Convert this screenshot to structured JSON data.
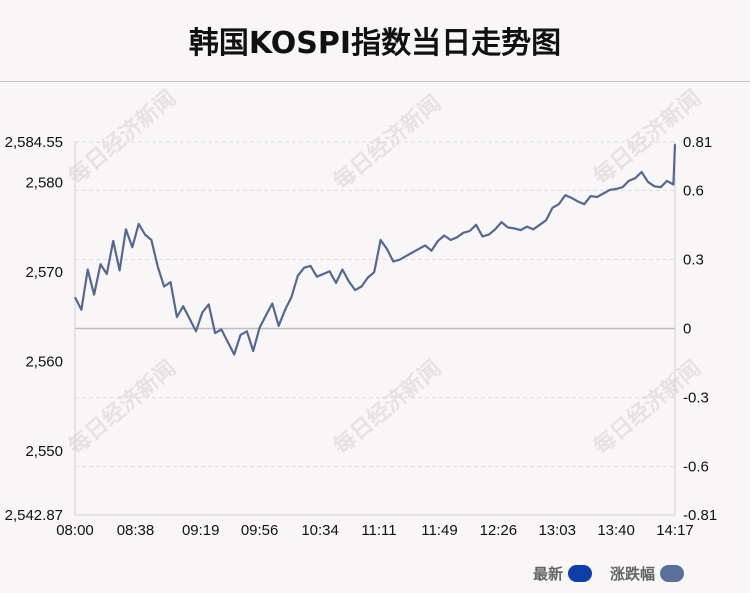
{
  "title": "韩国KOSPI指数当日走势图",
  "legend": [
    {
      "label": "最新",
      "color": "#0f3ea6"
    },
    {
      "label": "涨跌幅",
      "color": "#5b6f9b"
    }
  ],
  "watermark": "每日经济新闻",
  "colors": {
    "line": "#56688f",
    "grid": "#dcdcdc",
    "zero_line": "#bdbdbd"
  },
  "chart_data": {
    "type": "line",
    "title": "韩国KOSPI指数当日走势图",
    "x_ticks": [
      "08:00",
      "08:38",
      "09:19",
      "09:56",
      "10:34",
      "11:11",
      "11:49",
      "12:26",
      "13:03",
      "13:40",
      "14:17"
    ],
    "y_left": {
      "ticks": [
        "2,584.55",
        "2,580",
        "2,570",
        "2,560",
        "2,550",
        "2,542.87"
      ],
      "tick_values": [
        2584.55,
        2580,
        2570,
        2560,
        2550,
        2542.87
      ],
      "range": [
        2542.87,
        2584.55
      ]
    },
    "y_right": {
      "ticks": [
        "0.81",
        "0.6",
        "0.3",
        "0",
        "-0.3",
        "-0.6",
        "-0.81"
      ],
      "tick_values": [
        0.81,
        0.6,
        0.3,
        0,
        -0.3,
        -0.6,
        -0.81
      ],
      "range": [
        -0.81,
        0.81
      ]
    },
    "prev_close": 2563.71,
    "series": [
      {
        "name": "最新",
        "x": [
          "08:00",
          "08:04",
          "08:08",
          "08:12",
          "08:16",
          "08:20",
          "08:24",
          "08:28",
          "08:32",
          "08:36",
          "08:40",
          "08:44",
          "08:48",
          "08:52",
          "08:56",
          "09:00",
          "09:04",
          "09:08",
          "09:12",
          "09:16",
          "09:20",
          "09:24",
          "09:28",
          "09:32",
          "09:36",
          "09:40",
          "09:44",
          "09:48",
          "09:52",
          "09:56",
          "10:00",
          "10:04",
          "10:08",
          "10:12",
          "10:16",
          "10:20",
          "10:24",
          "10:28",
          "10:32",
          "10:36",
          "10:40",
          "10:44",
          "10:48",
          "10:52",
          "10:56",
          "11:00",
          "11:04",
          "11:08",
          "11:12",
          "11:16",
          "11:20",
          "11:24",
          "11:28",
          "11:32",
          "11:36",
          "11:40",
          "11:44",
          "11:48",
          "11:52",
          "11:56",
          "12:00",
          "12:04",
          "12:08",
          "12:12",
          "12:16",
          "12:20",
          "12:24",
          "12:28",
          "12:32",
          "12:36",
          "12:40",
          "12:44",
          "12:48",
          "12:52",
          "12:56",
          "13:00",
          "13:04",
          "13:08",
          "13:12",
          "13:16",
          "13:20",
          "13:24",
          "13:28",
          "13:32",
          "13:36",
          "13:40",
          "13:44",
          "13:48",
          "13:52",
          "13:56",
          "14:00",
          "14:04",
          "14:08",
          "14:12",
          "14:16",
          "14:17"
        ],
        "values": [
          2567.2,
          2565.8,
          2570.3,
          2567.5,
          2570.9,
          2569.8,
          2573.5,
          2570.2,
          2574.8,
          2572.8,
          2575.4,
          2574.2,
          2573.6,
          2570.6,
          2568.4,
          2568.9,
          2565.0,
          2566.2,
          2564.8,
          2563.4,
          2565.5,
          2566.4,
          2563.2,
          2563.6,
          2562.2,
          2560.8,
          2563.0,
          2563.4,
          2561.2,
          2563.8,
          2565.2,
          2566.5,
          2564.0,
          2565.8,
          2567.2,
          2569.6,
          2570.5,
          2570.7,
          2569.5,
          2569.8,
          2570.1,
          2568.8,
          2570.3,
          2569.0,
          2568.0,
          2568.4,
          2569.4,
          2570.0,
          2573.6,
          2572.6,
          2571.2,
          2571.4,
          2571.8,
          2572.2,
          2572.6,
          2573.0,
          2572.4,
          2573.5,
          2574.1,
          2573.6,
          2573.9,
          2574.4,
          2574.6,
          2575.3,
          2574.0,
          2574.2,
          2574.8,
          2575.6,
          2575.0,
          2574.9,
          2574.7,
          2575.1,
          2574.8,
          2575.3,
          2575.8,
          2577.2,
          2577.6,
          2578.6,
          2578.3,
          2577.9,
          2577.6,
          2578.5,
          2578.4,
          2578.8,
          2579.2,
          2579.3,
          2579.5,
          2580.2,
          2580.5,
          2581.2,
          2580.1,
          2579.6,
          2579.5,
          2580.2,
          2579.8,
          2584.3
        ]
      }
    ],
    "grid": true,
    "legend_position": "bottom-right"
  }
}
